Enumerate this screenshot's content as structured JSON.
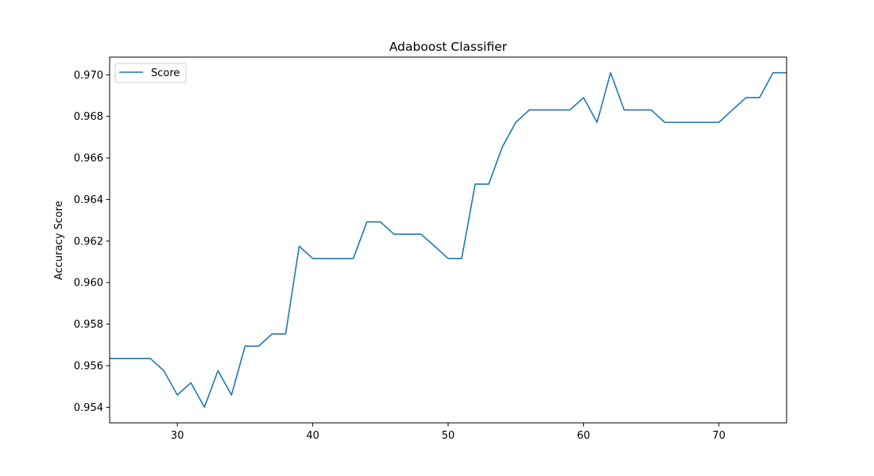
{
  "chart_data": {
    "type": "line",
    "title": "Adaboost Classifier",
    "xlabel": "",
    "ylabel": "Accuracy Score",
    "xlim": [
      25,
      75
    ],
    "ylim": [
      0.95325,
      0.97085
    ],
    "xticks": [
      30,
      40,
      50,
      60,
      70
    ],
    "yticks": [
      0.954,
      0.956,
      0.958,
      0.96,
      0.962,
      0.964,
      0.966,
      0.968,
      0.97
    ],
    "ytick_labels": [
      "0.954",
      "0.956",
      "0.958",
      "0.960",
      "0.962",
      "0.964",
      "0.966",
      "0.968",
      "0.970"
    ],
    "grid": false,
    "legend": "upper-left",
    "series": [
      {
        "name": "Score",
        "color": "#1f77b4",
        "x": [
          25,
          26,
          27,
          28,
          29,
          30,
          31,
          32,
          33,
          34,
          35,
          36,
          37,
          38,
          39,
          40,
          41,
          42,
          43,
          44,
          45,
          46,
          47,
          48,
          49,
          50,
          51,
          52,
          53,
          54,
          55,
          56,
          57,
          58,
          59,
          60,
          61,
          62,
          63,
          64,
          65,
          66,
          67,
          68,
          69,
          70,
          71,
          72,
          73,
          74,
          75
        ],
        "y": [
          0.95635,
          0.95635,
          0.95635,
          0.95635,
          0.95576,
          0.95459,
          0.95518,
          0.954,
          0.95576,
          0.95459,
          0.95694,
          0.95694,
          0.95753,
          0.95753,
          0.96175,
          0.96116,
          0.96116,
          0.96116,
          0.96116,
          0.96292,
          0.96292,
          0.96233,
          0.96233,
          0.96233,
          0.96175,
          0.96116,
          0.96116,
          0.96474,
          0.96474,
          0.96652,
          0.96771,
          0.96831,
          0.96831,
          0.96831,
          0.96831,
          0.9689,
          0.96771,
          0.9701,
          0.96831,
          0.96831,
          0.96831,
          0.96771,
          0.96771,
          0.96771,
          0.96771,
          0.96771,
          0.96831,
          0.9689,
          0.9689,
          0.9701,
          0.9701
        ]
      }
    ]
  }
}
